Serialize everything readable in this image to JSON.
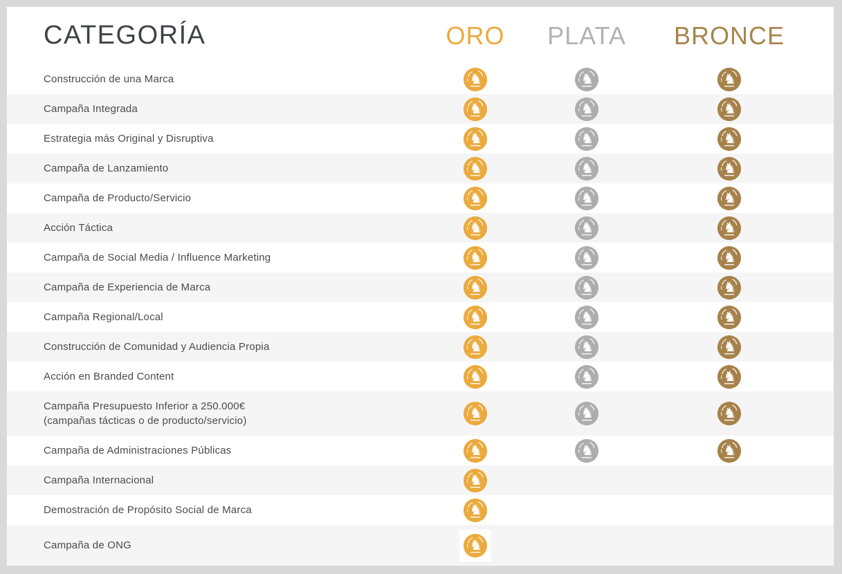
{
  "page": {
    "frame_color": "#d9d9d9",
    "card_color": "#ffffff",
    "stripe_color": "#f5f5f5",
    "label_color": "#4b4b4d",
    "title_color": "#414247"
  },
  "table": {
    "header": {
      "category_label": "CATEGORÍA",
      "columns": [
        {
          "id": "oro",
          "label": "ORO",
          "text_color": "#ebaa3e",
          "medal_color": "#ebaa3d",
          "icon": "gold-medal-icon"
        },
        {
          "id": "plata",
          "label": "PLATA",
          "text_color": "#b2b2b3",
          "medal_color": "#adadad",
          "icon": "silver-medal-icon"
        },
        {
          "id": "bronce",
          "label": "BRONCE",
          "text_color": "#a8854b",
          "medal_color": "#a6824a",
          "icon": "bronze-medal-icon"
        }
      ]
    },
    "rows": [
      {
        "label": "Construcción de una Marca",
        "sublabel": "",
        "oro": true,
        "plata": true,
        "bronce": true,
        "oro_highlight": false
      },
      {
        "label": "Campaña Integrada",
        "sublabel": "",
        "oro": true,
        "plata": true,
        "bronce": true,
        "oro_highlight": false
      },
      {
        "label": "Estrategia más Original y Disruptiva",
        "sublabel": "",
        "oro": true,
        "plata": true,
        "bronce": true,
        "oro_highlight": false
      },
      {
        "label": "Campaña de Lanzamiento",
        "sublabel": "",
        "oro": true,
        "plata": true,
        "bronce": true,
        "oro_highlight": false
      },
      {
        "label": "Campaña de Producto/Servicio",
        "sublabel": "",
        "oro": true,
        "plata": true,
        "bronce": true,
        "oro_highlight": false
      },
      {
        "label": "Acción Táctica",
        "sublabel": "",
        "oro": true,
        "plata": true,
        "bronce": true,
        "oro_highlight": false
      },
      {
        "label": "Campaña de Social Media / Influence Marketing",
        "sublabel": "",
        "oro": true,
        "plata": true,
        "bronce": true,
        "oro_highlight": false
      },
      {
        "label": "Campaña de Experiencia de Marca",
        "sublabel": "",
        "oro": true,
        "plata": true,
        "bronce": true,
        "oro_highlight": false
      },
      {
        "label": "Campaña Regional/Local",
        "sublabel": "",
        "oro": true,
        "plata": true,
        "bronce": true,
        "oro_highlight": false
      },
      {
        "label": "Construcción de Comunidad y Audiencia Propia",
        "sublabel": "",
        "oro": true,
        "plata": true,
        "bronce": true,
        "oro_highlight": false
      },
      {
        "label": "Acción en Branded Content",
        "sublabel": "",
        "oro": true,
        "plata": true,
        "bronce": true,
        "oro_highlight": false
      },
      {
        "label": "Campaña Presupuesto Inferior a 250.000€",
        "sublabel": "(campañas tácticas o de producto/servicio)",
        "oro": true,
        "plata": true,
        "bronce": true,
        "oro_highlight": false
      },
      {
        "label": "Campaña de Administraciones Públicas",
        "sublabel": "",
        "oro": true,
        "plata": true,
        "bronce": true,
        "oro_highlight": false
      },
      {
        "label": "Campaña Internacional",
        "sublabel": "",
        "oro": true,
        "plata": false,
        "bronce": false,
        "oro_highlight": false
      },
      {
        "label": "Demostración de Propósito Social de Marca",
        "sublabel": "",
        "oro": true,
        "plata": false,
        "bronce": false,
        "oro_highlight": false
      },
      {
        "label": "Campaña de ONG",
        "sublabel": "",
        "oro": true,
        "plata": false,
        "bronce": false,
        "oro_highlight": true
      }
    ]
  },
  "icons": {
    "medal_motif": "pegasus-coin"
  }
}
